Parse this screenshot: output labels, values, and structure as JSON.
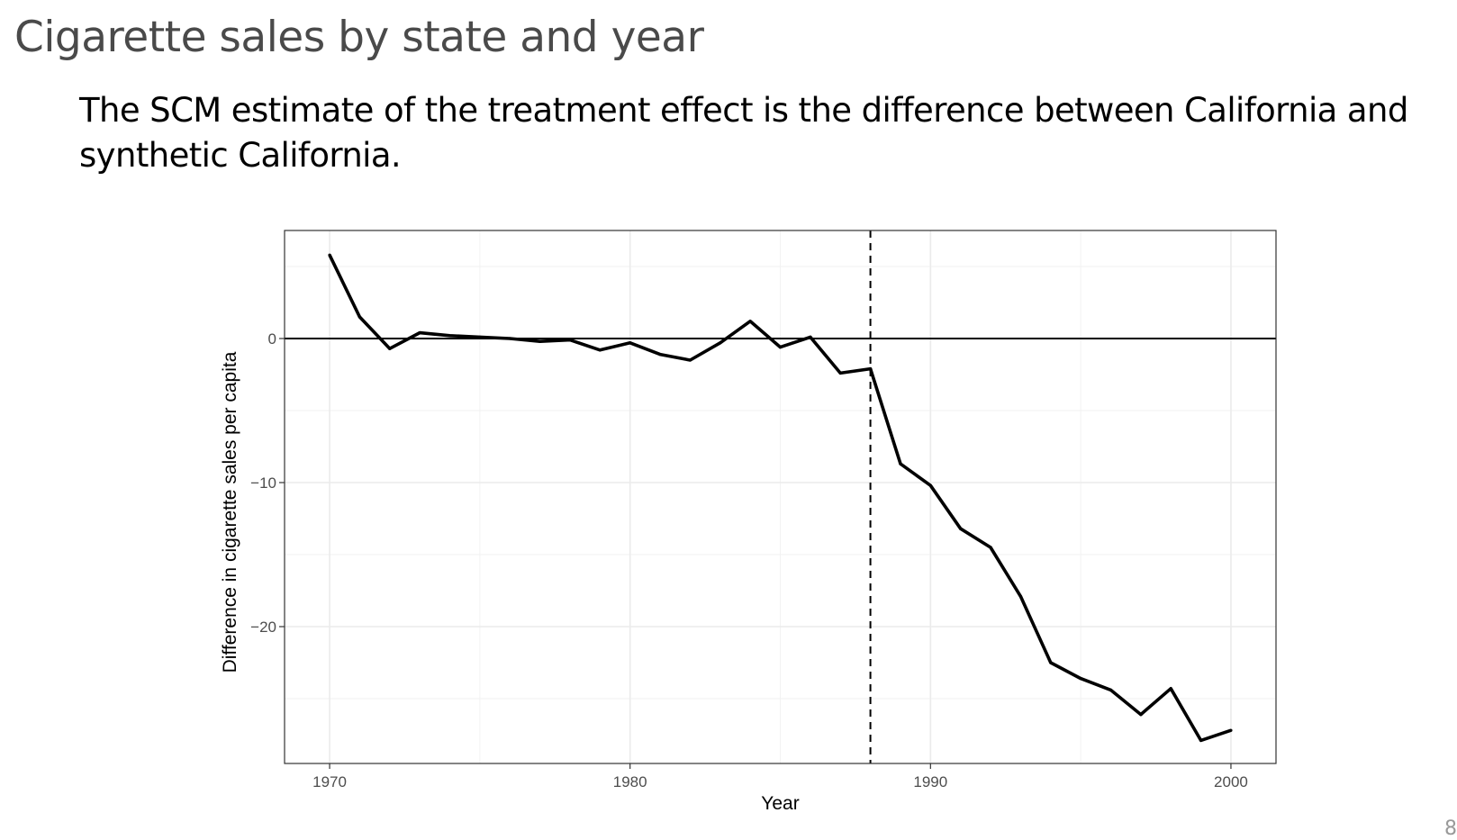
{
  "slide": {
    "title": "Cigarette sales by state and year",
    "body": "The SCM estimate of the treatment effect is the difference between California and synthetic California.",
    "page_number": "8"
  },
  "chart_data": {
    "type": "line",
    "title": "",
    "xlabel": "Year",
    "ylabel": "Difference in cigarette sales per capita",
    "xlim": [
      1968.5,
      2001.5
    ],
    "ylim": [
      -29.5,
      7.5
    ],
    "x_ticks": [
      1970,
      1980,
      1990,
      2000
    ],
    "y_ticks": [
      0,
      -10,
      -20
    ],
    "grid": true,
    "reference_lines": {
      "horizontal_y": 0,
      "vertical_x": 1988,
      "vertical_style": "dashed"
    },
    "series": [
      {
        "x": [
          1970,
          1971,
          1972,
          1973,
          1974,
          1975,
          1976,
          1977,
          1978,
          1979,
          1980,
          1981,
          1982,
          1983,
          1984,
          1985,
          1986,
          1987,
          1988,
          1989,
          1990,
          1991,
          1992,
          1993,
          1994,
          1995,
          1996,
          1997,
          1998,
          1999,
          2000
        ],
        "values": [
          5.8,
          1.5,
          -0.7,
          0.4,
          0.2,
          0.1,
          0.0,
          -0.2,
          -0.1,
          -0.8,
          -0.3,
          -1.1,
          -1.5,
          -0.3,
          1.2,
          -0.6,
          0.1,
          -2.4,
          -2.1,
          -8.7,
          -10.2,
          -13.2,
          -14.5,
          -17.9,
          -22.5,
          -23.6,
          -24.4,
          -26.1,
          -24.3,
          -27.9,
          -27.2
        ],
        "color": "#000000"
      }
    ]
  }
}
